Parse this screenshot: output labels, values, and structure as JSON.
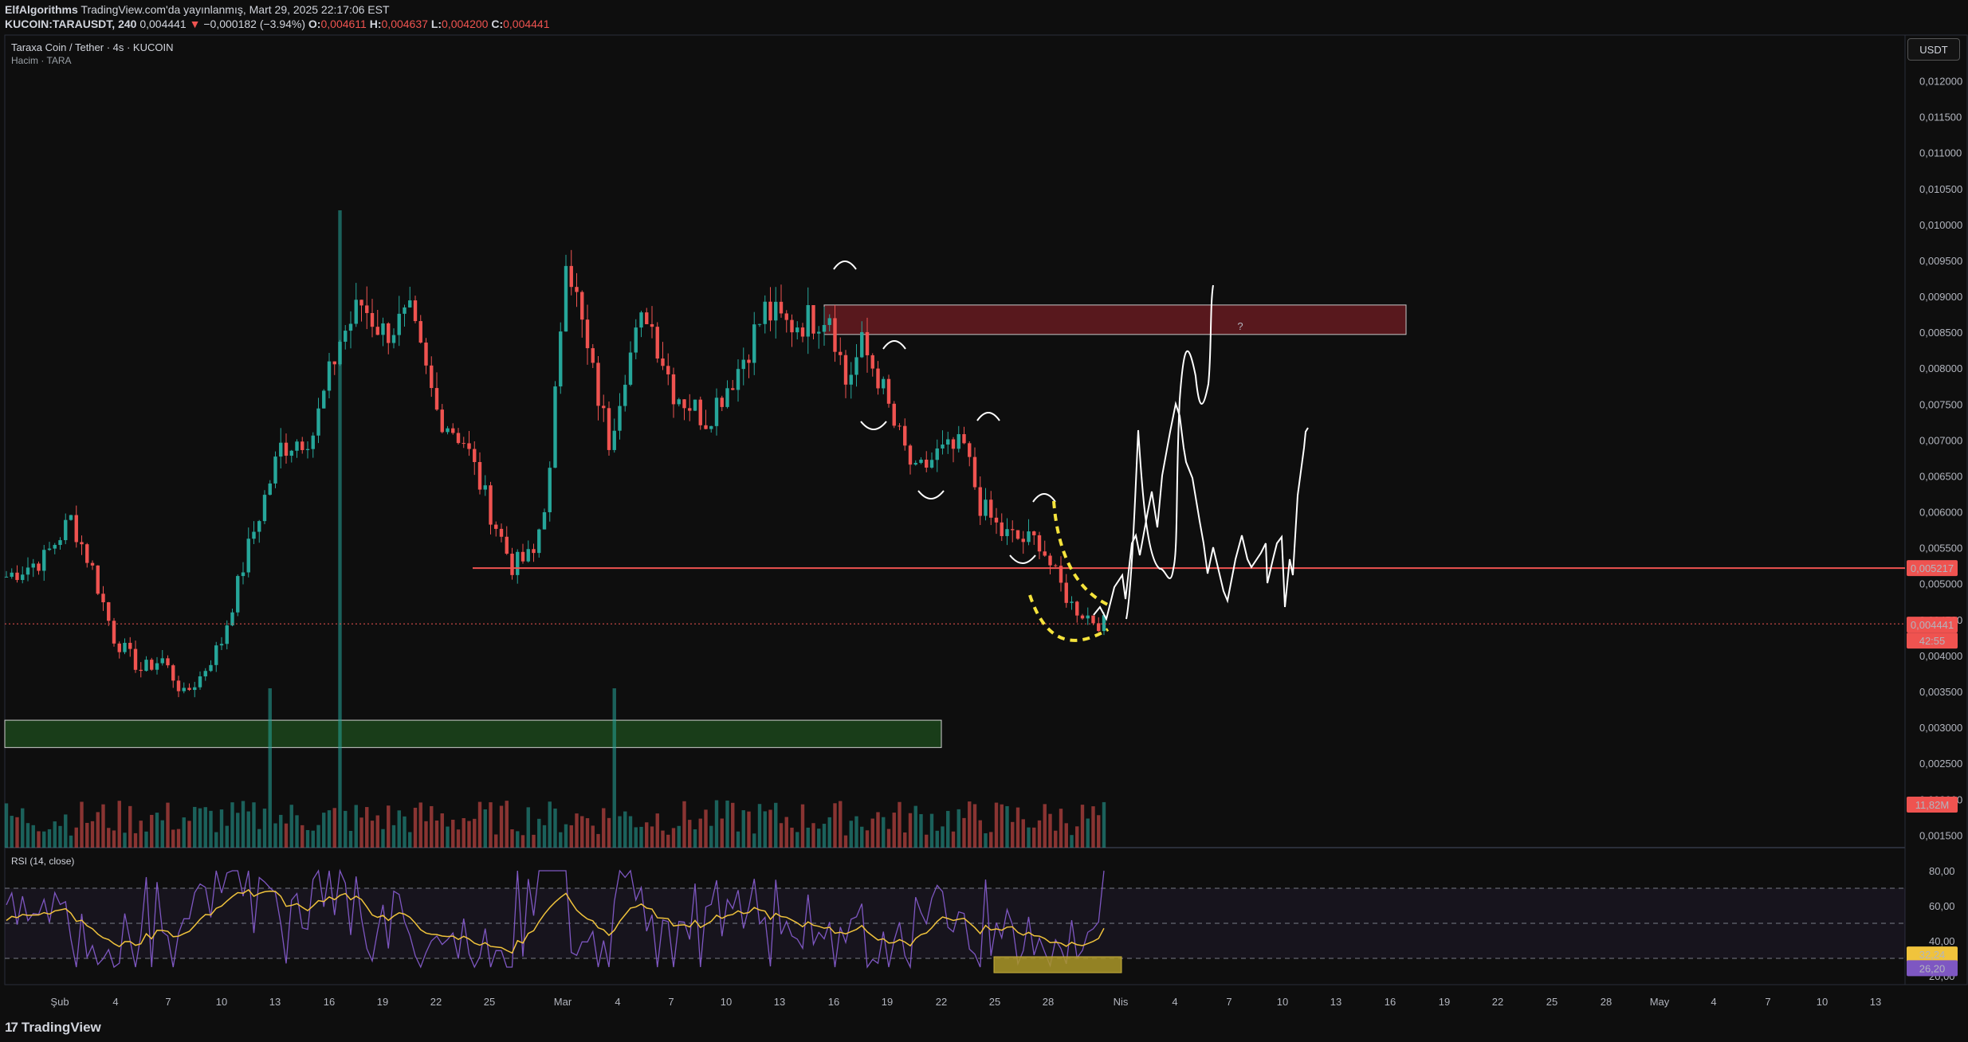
{
  "header": {
    "author": "ElfAlgorithms",
    "published": "TradingView.com'da yayınlanmış, Mart 29, 2025 22:17:06 EST",
    "symbol": "KUCOIN:TARAUSDT, 240",
    "last": "0,004441",
    "change_arrow": "▼",
    "change": "−0,000182 (−3.94%)",
    "o_label": "O:",
    "o_val": "0,004611",
    "h_label": "H:",
    "h_val": "0,004637",
    "l_label": "L:",
    "l_val": "0,004200",
    "c_label": "C:",
    "c_val": "0,004441"
  },
  "legend": {
    "title": "Taraxa Coin / Tether · 4s · KUCOIN",
    "volume": "Hacim · TARA",
    "rsi": "RSI (14, close)"
  },
  "currency_button": "USDT",
  "footer": {
    "brand": "TradingView",
    "brand_mark": "17"
  },
  "colors": {
    "up": "#26a69a",
    "down": "#ef5350",
    "background": "#0e0e0e",
    "rsi": "#7e57c2",
    "rsi_ma": "#f0c33c"
  },
  "chart_data": {
    "type": "candlestick",
    "price_axis": {
      "ticks": [
        "0,012000",
        "0,011500",
        "0,011000",
        "0,010500",
        "0,010000",
        "0,009500",
        "0,009000",
        "0,008500",
        "0,008000",
        "0,007500",
        "0,007000",
        "0,006500",
        "0,006000",
        "0,005500",
        "0,005000",
        "0,004500",
        "0,004000",
        "0,003500",
        "0,003000",
        "0,002500",
        "0,002000",
        "0,001500"
      ],
      "range": [
        0.00126,
        0.01266
      ]
    },
    "time_axis": {
      "ticks": [
        "Şub",
        "4",
        "7",
        "10",
        "13",
        "16",
        "19",
        "22",
        "25",
        "Mar",
        "4",
        "7",
        "10",
        "13",
        "16",
        "19",
        "22",
        "25",
        "28",
        "Nis",
        "4",
        "7",
        "10",
        "13",
        "16",
        "19",
        "22",
        "25",
        "28",
        "May",
        "4",
        "7",
        "10",
        "13"
      ]
    },
    "price_key_points": [
      [
        0,
        0.0051
      ],
      [
        7,
        0.00535
      ],
      [
        12,
        0.0059
      ],
      [
        16,
        0.0052
      ],
      [
        20,
        0.00425
      ],
      [
        25,
        0.0038
      ],
      [
        29,
        0.00395
      ],
      [
        33,
        0.00345
      ],
      [
        36,
        0.0037
      ],
      [
        40,
        0.0042
      ],
      [
        45,
        0.0055
      ],
      [
        51,
        0.0069
      ],
      [
        57,
        0.0071
      ],
      [
        62,
        0.0084
      ],
      [
        66,
        0.0089
      ],
      [
        70,
        0.0085
      ],
      [
        75,
        0.0087
      ],
      [
        80,
        0.0074
      ],
      [
        85,
        0.007
      ],
      [
        90,
        0.006
      ],
      [
        94,
        0.00525
      ],
      [
        98,
        0.0054
      ],
      [
        101,
        0.0065
      ],
      [
        104,
        0.0097
      ],
      [
        108,
        0.0082
      ],
      [
        112,
        0.007
      ],
      [
        115,
        0.008
      ],
      [
        119,
        0.0088
      ],
      [
        124,
        0.0077
      ],
      [
        130,
        0.0073
      ],
      [
        136,
        0.008
      ],
      [
        141,
        0.0088
      ],
      [
        145,
        0.0086
      ],
      [
        150,
        0.0087
      ],
      [
        153,
        0.0088
      ],
      [
        156,
        0.0078
      ],
      [
        159,
        0.0083
      ],
      [
        162,
        0.0079
      ],
      [
        165,
        0.0072
      ],
      [
        169,
        0.0065
      ],
      [
        173,
        0.0068
      ],
      [
        178,
        0.0069
      ],
      [
        181,
        0.0061
      ],
      [
        185,
        0.0057
      ],
      [
        189,
        0.0056
      ],
      [
        192,
        0.0056
      ],
      [
        195,
        0.0051
      ],
      [
        198,
        0.0047
      ],
      [
        202,
        0.0045
      ],
      [
        204,
        0.00444
      ]
    ],
    "volume": {
      "label": "11,82M",
      "spike_candles": [
        49,
        62,
        113
      ]
    },
    "rsi": {
      "ticks": [
        "80,00",
        "60,00",
        "40,00",
        "20,00"
      ],
      "levels": [
        70,
        50,
        30
      ],
      "value": "26,20",
      "ma_value": "32,24"
    },
    "annotations": {
      "support_line": "0,005217",
      "current_price": "0,004441",
      "countdown": "42:55",
      "resistance_zone": [
        0.00847,
        0.00888
      ],
      "support_zone": [
        0.00272,
        0.0031
      ],
      "question_mark": "?"
    }
  }
}
